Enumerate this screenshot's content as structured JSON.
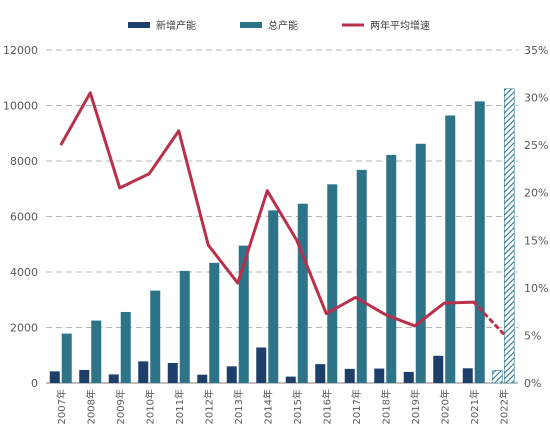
{
  "colors": {
    "new_capacity": "#1f3f6b",
    "total_capacity": "#2e7489",
    "growth_line": "#b8304a",
    "grid": "#9e9e9e",
    "axis_text": "#595959"
  },
  "chart_data": {
    "type": "bar",
    "categories": [
      "2007年",
      "2008年",
      "2009年",
      "2010年",
      "2011年",
      "2012年",
      "2013年",
      "2014年",
      "2015年",
      "2016年",
      "2017年",
      "2018年",
      "2019年",
      "2020年",
      "2021年",
      "2022年"
    ],
    "series": [
      {
        "name": "新增产能",
        "type": "bar",
        "axis": "left",
        "values": [
          420,
          470,
          310,
          780,
          720,
          300,
          600,
          1280,
          230,
          680,
          510,
          520,
          400,
          980,
          530,
          null
        ],
        "estimated_hatched": [
          null,
          null,
          null,
          null,
          null,
          null,
          null,
          null,
          null,
          null,
          null,
          null,
          null,
          null,
          null,
          450
        ]
      },
      {
        "name": "总产能",
        "type": "bar",
        "axis": "left",
        "values": [
          1780,
          2250,
          2560,
          3330,
          4040,
          4330,
          4950,
          6220,
          6460,
          7160,
          7680,
          8220,
          8620,
          9640,
          10150,
          null
        ],
        "estimated_hatched": [
          null,
          null,
          null,
          null,
          null,
          null,
          null,
          null,
          null,
          null,
          null,
          null,
          null,
          null,
          null,
          10600
        ]
      },
      {
        "name": "两年平均增速",
        "type": "line",
        "axis": "right",
        "values": [
          0.25,
          0.305,
          0.205,
          0.22,
          0.265,
          0.145,
          0.105,
          0.202,
          0.15,
          0.073,
          0.09,
          0.072,
          0.06,
          0.084,
          0.085,
          null
        ],
        "projected_dotted": [
          null,
          null,
          null,
          null,
          null,
          null,
          null,
          null,
          null,
          null,
          null,
          null,
          null,
          null,
          0.085,
          0.052
        ]
      }
    ],
    "y_left": {
      "min": 0,
      "max": 12000,
      "ticks": [
        "0",
        "2000",
        "4000",
        "6000",
        "8000",
        "10000",
        "12000"
      ]
    },
    "y_right": {
      "min": 0,
      "max": 0.35,
      "ticks": [
        "0%",
        "5%",
        "10%",
        "15%",
        "20%",
        "25%",
        "30%",
        "35%"
      ]
    },
    "grid": "dashed horizontal",
    "legend_position": "top"
  }
}
